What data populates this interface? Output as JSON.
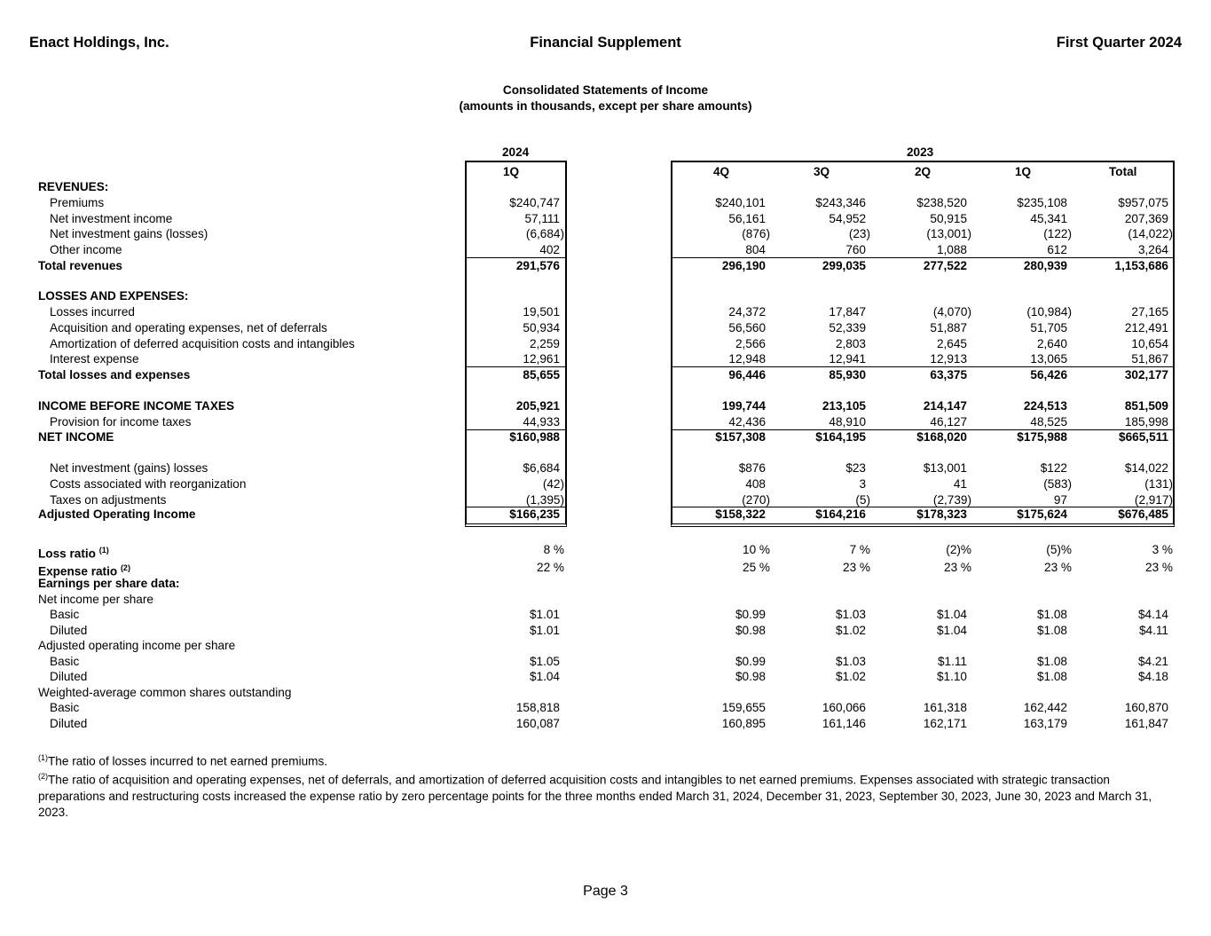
{
  "header": {
    "company": "Enact Holdings, Inc.",
    "document": "Financial Supplement",
    "period": "First Quarter 2024"
  },
  "title": {
    "line1": "Consolidated Statements of Income",
    "line2": "(amounts in thousands, except per share amounts)"
  },
  "years": {
    "y2024": "2024",
    "y2023": "2023"
  },
  "columns": [
    "1Q",
    "4Q",
    "3Q",
    "2Q",
    "1Q",
    "Total"
  ],
  "rows": [
    {
      "label": "REVENUES:",
      "bold": true,
      "values": []
    },
    {
      "label": "Premiums",
      "indent": true,
      "values": [
        "$240,747",
        "$240,101",
        "$243,346",
        "$238,520",
        "$235,108",
        "$957,075"
      ]
    },
    {
      "label": "Net investment income",
      "indent": true,
      "values": [
        "57,111",
        "56,161",
        "54,952",
        "50,915",
        "45,341",
        "207,369"
      ]
    },
    {
      "label": "Net investment gains (losses)",
      "indent": true,
      "values": [
        "(6,684)",
        "(876)",
        "(23)",
        "(13,001)",
        "(122)",
        "(14,022)"
      ]
    },
    {
      "label": "Other income",
      "indent": true,
      "values": [
        "402",
        "804",
        "760",
        "1,088",
        "612",
        "3,264"
      ]
    },
    {
      "label": "Total revenues",
      "bold": true,
      "values": [
        "291,576",
        "296,190",
        "299,035",
        "277,522",
        "280,939",
        "1,153,686"
      ]
    },
    {
      "label": "LOSSES AND EXPENSES:",
      "bold": true,
      "values": []
    },
    {
      "label": "Losses incurred",
      "indent": true,
      "values": [
        "19,501",
        "24,372",
        "17,847",
        "(4,070)",
        "(10,984)",
        "27,165"
      ]
    },
    {
      "label": "Acquisition and operating expenses, net of deferrals",
      "indent": true,
      "values": [
        "50,934",
        "56,560",
        "52,339",
        "51,887",
        "51,705",
        "212,491"
      ]
    },
    {
      "label": "Amortization of deferred acquisition costs and intangibles",
      "indent": true,
      "values": [
        "2,259",
        "2,566",
        "2,803",
        "2,645",
        "2,640",
        "10,654"
      ]
    },
    {
      "label": "Interest expense",
      "indent": true,
      "values": [
        "12,961",
        "12,948",
        "12,941",
        "12,913",
        "13,065",
        "51,867"
      ]
    },
    {
      "label": "Total losses and expenses",
      "bold": true,
      "values": [
        "85,655",
        "96,446",
        "85,930",
        "63,375",
        "56,426",
        "302,177"
      ]
    },
    {
      "label": "INCOME BEFORE INCOME TAXES",
      "bold": true,
      "values": [
        "205,921",
        "199,744",
        "213,105",
        "214,147",
        "224,513",
        "851,509"
      ]
    },
    {
      "label": "Provision for income taxes",
      "indent": true,
      "values": [
        "44,933",
        "42,436",
        "48,910",
        "46,127",
        "48,525",
        "185,998"
      ]
    },
    {
      "label": "NET INCOME",
      "bold": true,
      "values": [
        "$160,988",
        "$157,308",
        "$164,195",
        "$168,020",
        "$175,988",
        "$665,511"
      ]
    },
    {
      "label": "Net investment (gains) losses",
      "indent": true,
      "values": [
        "$6,684",
        "$876",
        "$23",
        "$13,001",
        "$122",
        "$14,022"
      ]
    },
    {
      "label": "Costs associated with reorganization",
      "indent": true,
      "values": [
        "(42)",
        "408",
        "3",
        "41",
        "(583)",
        "(131)"
      ]
    },
    {
      "label": "Taxes on adjustments",
      "indent": true,
      "values": [
        "(1,395)",
        "(270)",
        "(5)",
        "(2,739)",
        "97",
        "(2,917)"
      ]
    },
    {
      "label": "Adjusted Operating Income",
      "bold": true,
      "values": [
        "$166,235",
        "$158,322",
        "$164,216",
        "$178,323",
        "$175,624",
        "$676,485"
      ]
    },
    {
      "label": "Loss ratio",
      "sup": "(1)",
      "bold": true,
      "values": [
        "8 %",
        "10 %",
        "7 %",
        "(2)%",
        "(5)%",
        "3 %"
      ]
    },
    {
      "label": "Expense ratio",
      "sup": "(2)",
      "bold": true,
      "values": [
        "22 %",
        "25 %",
        "23 %",
        "23 %",
        "23 %",
        "23 %"
      ]
    },
    {
      "label": "Earnings per share data:",
      "bold": true,
      "values": []
    },
    {
      "label": "Net income per share",
      "values": []
    },
    {
      "label": "Basic",
      "indent": true,
      "values": [
        "$1.01",
        "$0.99",
        "$1.03",
        "$1.04",
        "$1.08",
        "$4.14"
      ]
    },
    {
      "label": "Diluted",
      "indent": true,
      "values": [
        "$1.01",
        "$0.98",
        "$1.02",
        "$1.04",
        "$1.08",
        "$4.11"
      ]
    },
    {
      "label": "Adjusted operating income per share",
      "values": []
    },
    {
      "label": "Basic",
      "indent": true,
      "values": [
        "$1.05",
        "$0.99",
        "$1.03",
        "$1.11",
        "$1.08",
        "$4.21"
      ]
    },
    {
      "label": "Diluted",
      "indent": true,
      "values": [
        "$1.04",
        "$0.98",
        "$1.02",
        "$1.10",
        "$1.08",
        "$4.18"
      ]
    },
    {
      "label": "Weighted-average common shares outstanding",
      "values": []
    },
    {
      "label": "Basic",
      "indent": true,
      "values": [
        "158,818",
        "159,655",
        "160,066",
        "161,318",
        "162,442",
        "160,870"
      ]
    },
    {
      "label": "Diluted",
      "indent": true,
      "values": [
        "160,087",
        "160,895",
        "161,146",
        "162,171",
        "163,179",
        "161,847"
      ]
    }
  ],
  "footnotes": {
    "fn1_mark": "(1)",
    "fn1": "The ratio of losses incurred to net earned premiums.",
    "fn2_mark": "(2)",
    "fn2": "The ratio of acquisition and operating expenses, net of deferrals, and amortization of deferred acquisition costs and intangibles to net earned premiums. Expenses associated with strategic transaction preparations and restructuring costs increased the expense ratio by zero percentage points for the three months ended March 31, 2024, December 31, 2023, September 30, 2023, June 30, 2023 and March 31, 2023."
  },
  "footer": {
    "page": "Page 3"
  }
}
